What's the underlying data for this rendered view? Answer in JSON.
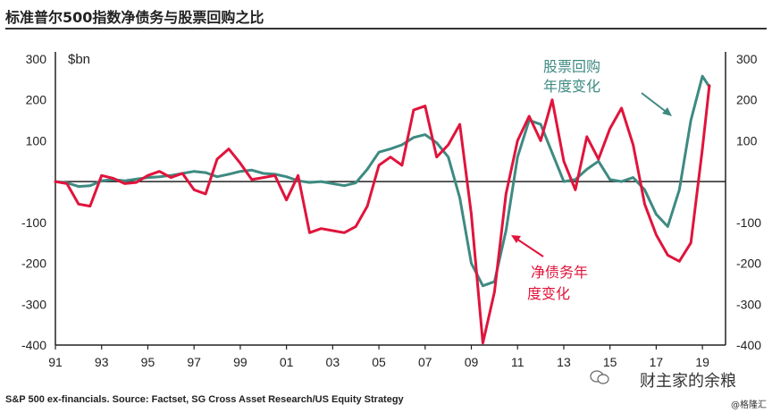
{
  "header": {
    "title": "标准普尔500指数净债务与股票回购之比"
  },
  "footer": {
    "source": "S&P 500 ex-financials. Source: Factset, SG Cross Asset Research/US Equity Strategy",
    "watermark": "财主家的余粮",
    "credit": "@格隆汇",
    "wechat_icon": "wechat-icon"
  },
  "colors": {
    "buyback": "#3e8a82",
    "netdebt": "#e0143c",
    "axis": "#222222"
  },
  "chart_data": {
    "type": "line",
    "unit_label": "$bn",
    "ylim": [
      -400,
      300
    ],
    "y_ticks": [
      300,
      200,
      100,
      -100,
      -200,
      -300,
      -400
    ],
    "x_ticks": [
      "91",
      "93",
      "95",
      "97",
      "99",
      "01",
      "03",
      "05",
      "07",
      "09",
      "11",
      "13",
      "15",
      "17",
      "19"
    ],
    "xlim": [
      1991,
      2020
    ],
    "grid": false,
    "zero_line": true,
    "series": [
      {
        "name": "股票回购年度变化",
        "label_lines": [
          "股票回购",
          "年度变化"
        ],
        "color": "#3e8a82",
        "points": [
          [
            1991,
            0
          ],
          [
            1991.5,
            -3
          ],
          [
            1992,
            -12
          ],
          [
            1992.5,
            -10
          ],
          [
            1993,
            2
          ],
          [
            1993.5,
            5
          ],
          [
            1994,
            2
          ],
          [
            1994.5,
            6
          ],
          [
            1995,
            10
          ],
          [
            1995.5,
            12
          ],
          [
            1996,
            15
          ],
          [
            1996.5,
            20
          ],
          [
            1997,
            25
          ],
          [
            1997.5,
            22
          ],
          [
            1998,
            12
          ],
          [
            1998.5,
            18
          ],
          [
            1999,
            25
          ],
          [
            1999.5,
            28
          ],
          [
            2000,
            20
          ],
          [
            2000.5,
            18
          ],
          [
            2001,
            12
          ],
          [
            2001.5,
            2
          ],
          [
            2002,
            -2
          ],
          [
            2002.5,
            0
          ],
          [
            2003,
            -5
          ],
          [
            2003.5,
            -10
          ],
          [
            2004,
            -3
          ],
          [
            2004.5,
            30
          ],
          [
            2005,
            72
          ],
          [
            2005.5,
            80
          ],
          [
            2006,
            90
          ],
          [
            2006.5,
            108
          ],
          [
            2007,
            115
          ],
          [
            2007.5,
            95
          ],
          [
            2008,
            60
          ],
          [
            2008.5,
            -40
          ],
          [
            2009,
            -200
          ],
          [
            2009.5,
            -255
          ],
          [
            2010,
            -245
          ],
          [
            2010.5,
            -120
          ],
          [
            2011,
            60
          ],
          [
            2011.5,
            150
          ],
          [
            2012,
            140
          ],
          [
            2012.5,
            70
          ],
          [
            2013,
            0
          ],
          [
            2013.5,
            5
          ],
          [
            2014,
            30
          ],
          [
            2014.5,
            50
          ],
          [
            2015,
            5
          ],
          [
            2015.5,
            0
          ],
          [
            2016,
            10
          ],
          [
            2016.5,
            -20
          ],
          [
            2017,
            -80
          ],
          [
            2017.5,
            -110
          ],
          [
            2018,
            -20
          ],
          [
            2018.5,
            150
          ],
          [
            2019,
            258
          ],
          [
            2019.3,
            232
          ]
        ]
      },
      {
        "name": "净债务年度变化",
        "label_lines": [
          "净债务年",
          "度变化"
        ],
        "color": "#e0143c",
        "points": [
          [
            1991,
            0
          ],
          [
            1991.5,
            -5
          ],
          [
            1992,
            -55
          ],
          [
            1992.5,
            -60
          ],
          [
            1993,
            15
          ],
          [
            1993.5,
            8
          ],
          [
            1994,
            -5
          ],
          [
            1994.5,
            -2
          ],
          [
            1995,
            15
          ],
          [
            1995.5,
            25
          ],
          [
            1996,
            10
          ],
          [
            1996.5,
            20
          ],
          [
            1997,
            -20
          ],
          [
            1997.5,
            -30
          ],
          [
            1998,
            55
          ],
          [
            1998.5,
            80
          ],
          [
            1999,
            45
          ],
          [
            1999.5,
            5
          ],
          [
            2000,
            10
          ],
          [
            2000.5,
            15
          ],
          [
            2001,
            -45
          ],
          [
            2001.5,
            15
          ],
          [
            2002,
            -125
          ],
          [
            2002.5,
            -115
          ],
          [
            2003,
            -120
          ],
          [
            2003.5,
            -125
          ],
          [
            2004,
            -110
          ],
          [
            2004.5,
            -60
          ],
          [
            2005,
            40
          ],
          [
            2005.5,
            60
          ],
          [
            2006,
            40
          ],
          [
            2006.5,
            175
          ],
          [
            2007,
            185
          ],
          [
            2007.5,
            60
          ],
          [
            2008,
            90
          ],
          [
            2008.5,
            140
          ],
          [
            2009,
            -80
          ],
          [
            2009.5,
            -395
          ],
          [
            2010,
            -270
          ],
          [
            2010.5,
            -30
          ],
          [
            2011,
            100
          ],
          [
            2011.5,
            160
          ],
          [
            2012,
            100
          ],
          [
            2012.5,
            200
          ],
          [
            2013,
            50
          ],
          [
            2013.5,
            -20
          ],
          [
            2014,
            110
          ],
          [
            2014.5,
            55
          ],
          [
            2015,
            130
          ],
          [
            2015.5,
            180
          ],
          [
            2016,
            90
          ],
          [
            2016.5,
            -55
          ],
          [
            2017,
            -130
          ],
          [
            2017.5,
            -180
          ],
          [
            2018,
            -195
          ],
          [
            2018.5,
            -150
          ],
          [
            2019,
            80
          ],
          [
            2019.3,
            235
          ]
        ]
      }
    ]
  }
}
